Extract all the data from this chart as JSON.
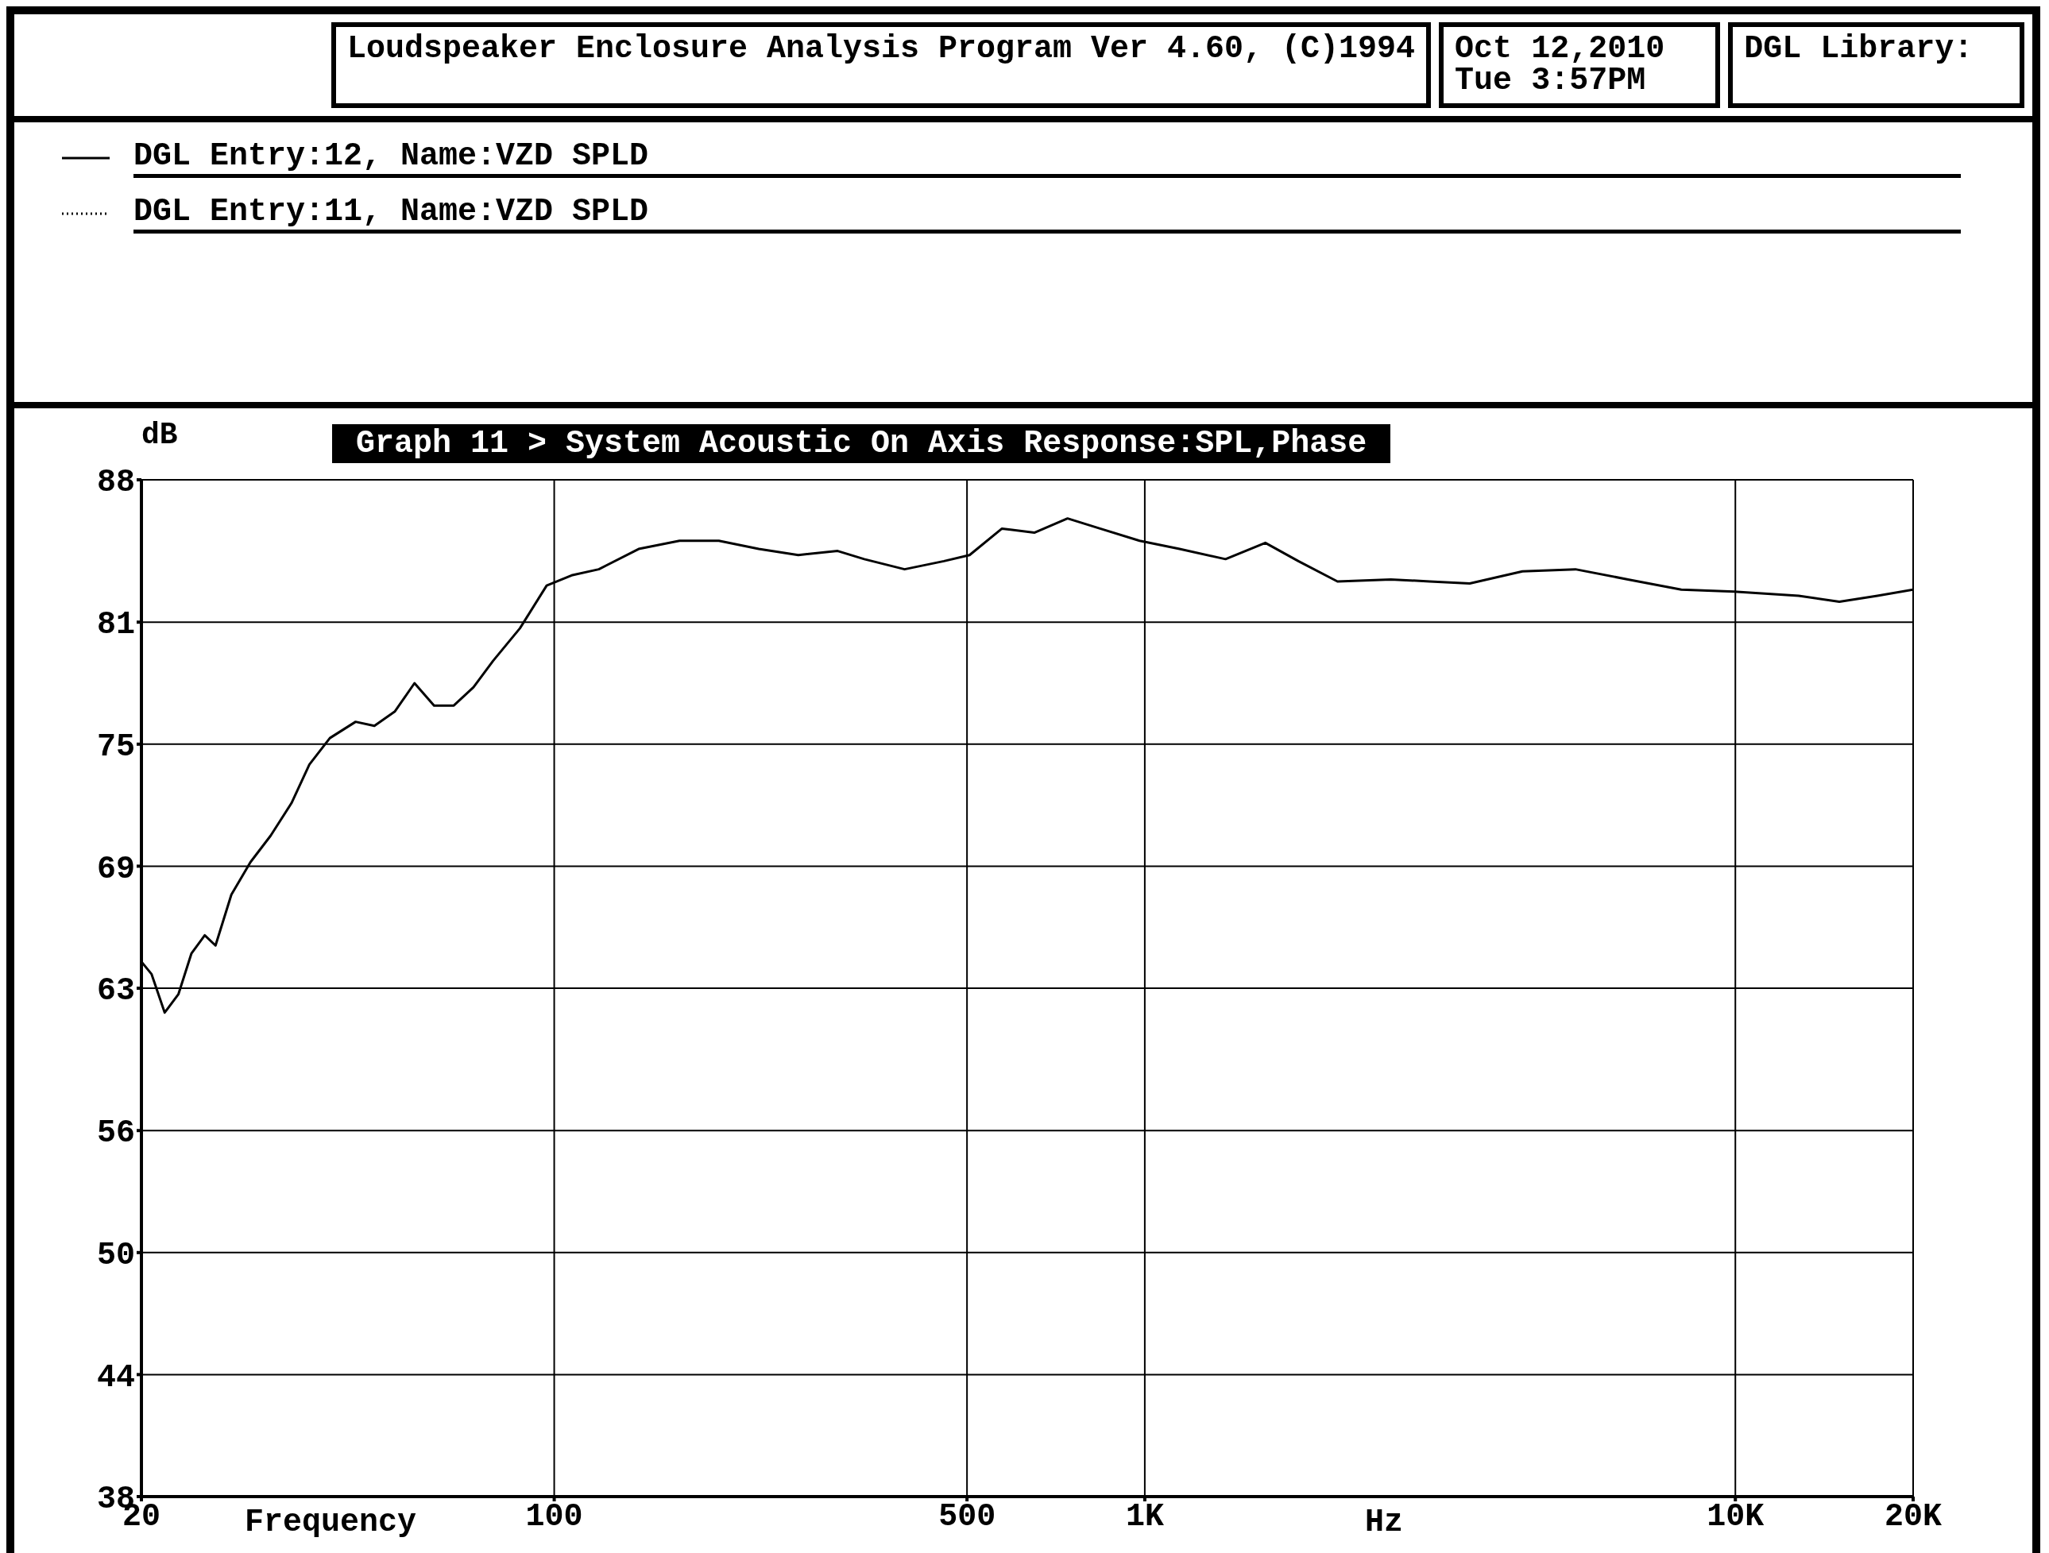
{
  "chart_data": {
    "type": "line",
    "title": "Graph 11 > System Acoustic On Axis Response:SPL,Phase",
    "subtitle": "Loudspeaker Enclosure Analysis Program Ver 4.60, (C)1994",
    "xlabel": "Frequency",
    "ylabel": "dB",
    "annotations": [
      "Oct 12,2010 Tue 3:57PM",
      "DGL Library:",
      "DGL Entry:11, Name:VZD SPLD",
      "Hz"
    ],
    "log": "x",
    "grid": true,
    "legend": "top left",
    "marker": "none",
    "line_style": "solid",
    "xlim": [
      20,
      20000
    ],
    "xticks": [
      20,
      100,
      500,
      {
        "value": 1000,
        "label": "1K"
      },
      {
        "value": 10000,
        "label": "10K"
      },
      {
        "value": 20000,
        "label": "20K"
      }
    ],
    "ylim": [
      38,
      88
    ],
    "yticks": [
      38,
      44,
      50,
      56,
      63,
      69,
      75,
      81,
      88
    ],
    "series": [
      {
        "name": "DGL Entry:12, Name:VZD SPLD",
        "color": "#000000",
        "x": [
          20,
          20.8,
          21.9,
          23.1,
          24.3,
          25.6,
          26.7,
          28.4,
          30.6,
          33.1,
          35.9,
          38.5,
          41.7,
          46.1,
          49.6,
          53.7,
          58,
          62.6,
          67.6,
          73,
          78.8,
          87.5,
          97.1,
          107,
          119,
          139,
          163,
          190,
          222,
          259,
          302,
          335,
          392,
          457,
          505,
          573,
          650,
          740,
          840,
          980,
          1145,
          1370,
          1600,
          1820,
          2120,
          2610,
          3040,
          3550,
          4360,
          5360,
          6580,
          8100,
          9950,
          12800,
          15000,
          17400,
          20000
        ],
        "values": [
          64.3,
          63.7,
          61.8,
          62.7,
          64.7,
          65.6,
          65.1,
          67.6,
          69.2,
          70.5,
          72.1,
          74,
          75.3,
          76.1,
          75.9,
          76.6,
          78,
          76.9,
          76.9,
          77.8,
          79.1,
          80.7,
          82.8,
          83.3,
          83.6,
          84.6,
          85,
          85,
          84.6,
          84.3,
          84.5,
          84.1,
          83.6,
          84,
          84.3,
          85.6,
          85.4,
          86.1,
          85.6,
          85,
          84.6,
          84.1,
          84.9,
          84,
          83,
          83.1,
          83,
          82.9,
          83.5,
          83.6,
          83.1,
          82.6,
          82.5,
          82.3,
          82,
          82.3,
          82.6
        ]
      }
    ]
  }
}
